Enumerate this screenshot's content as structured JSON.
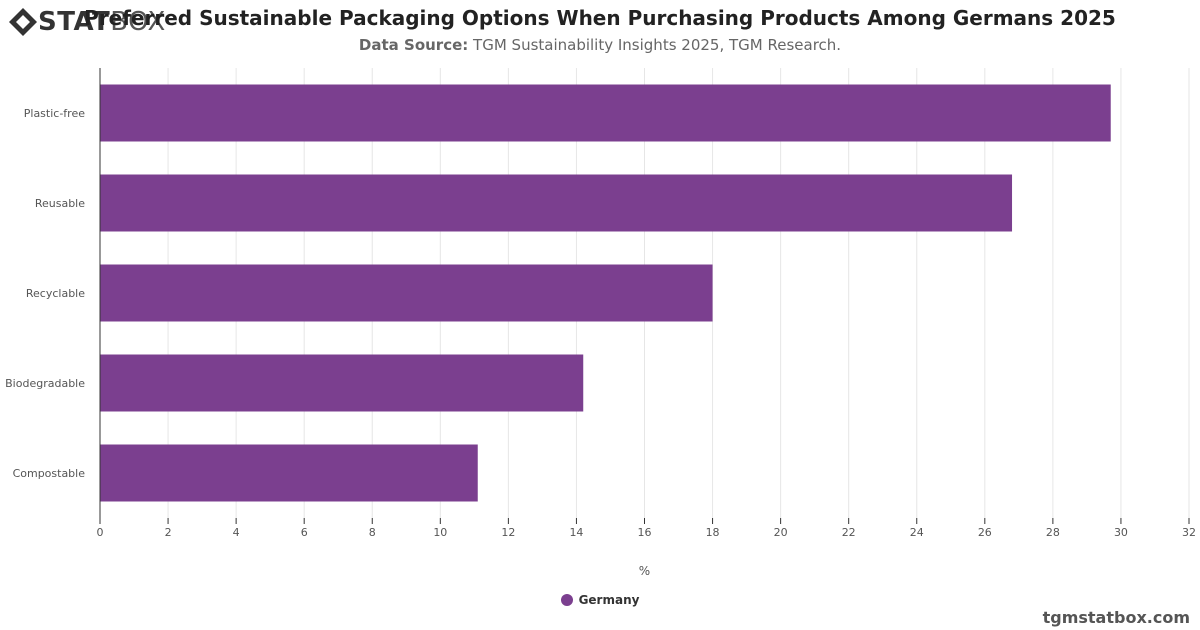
{
  "header": {
    "logo_primary": "STAT",
    "logo_secondary": "BOX",
    "title": "Preferred Sustainable Packaging Options When Purchasing Products Among Germans 2025",
    "source_label": "Data Source:",
    "source_text": "TGM Sustainability Insights 2025, TGM Research."
  },
  "footer": {
    "site": "tgmstatbox.com"
  },
  "colors": {
    "bar": "#7b3f8f",
    "grid": "#e6e6e6",
    "axis": "#333333",
    "text": "#555555"
  },
  "chart_data": {
    "type": "bar",
    "orientation": "horizontal",
    "categories": [
      "Plastic-free",
      "Reusable",
      "Recyclable",
      "Biodegradable",
      "Compostable"
    ],
    "series": [
      {
        "name": "Germany",
        "values": [
          29.7,
          26.8,
          18.0,
          14.2,
          11.1
        ]
      }
    ],
    "xlabel": "%",
    "xlim": [
      0,
      32
    ],
    "xticks": [
      0,
      2,
      4,
      6,
      8,
      10,
      12,
      14,
      16,
      18,
      20,
      22,
      24,
      26,
      28,
      30,
      32
    ],
    "grid": true,
    "legend_position": "bottom-center"
  }
}
